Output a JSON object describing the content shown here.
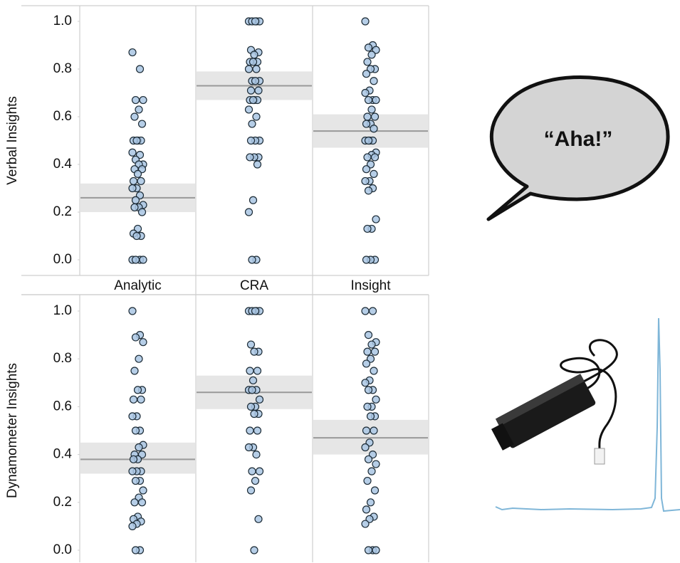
{
  "chart_data": [
    {
      "type": "strip",
      "y_label": "Verbal Insights",
      "categories": [
        "Analytic",
        "CRA",
        "Insight"
      ],
      "ylim": [
        0,
        1
      ],
      "yticks": [
        {
          "value": 0,
          "label": "0.0"
        },
        0.2,
        0.4,
        0.6,
        0.8,
        {
          "value": 1,
          "label": "1.0"
        }
      ],
      "grid": false,
      "point_color": "#a9c6e3",
      "mean_color": "#999999",
      "band_color": "#e6e6e6",
      "points": [
        [
          0.87,
          0.8,
          0.67,
          0.67,
          0.63,
          0.6,
          0.57,
          0.5,
          0.5,
          0.5,
          0.5,
          0.45,
          0.44,
          0.42,
          0.4,
          0.4,
          0.38,
          0.38,
          0.36,
          0.33,
          0.33,
          0.3,
          0.3,
          0.27,
          0.25,
          0.23,
          0.22,
          0.22,
          0.2,
          0.13,
          0.11,
          0.1,
          0.1,
          0,
          0,
          0,
          0
        ],
        [
          1,
          1,
          1,
          1,
          1,
          0.88,
          0.87,
          0.86,
          0.83,
          0.83,
          0.83,
          0.8,
          0.8,
          0.75,
          0.75,
          0.75,
          0.71,
          0.71,
          0.67,
          0.67,
          0.67,
          0.67,
          0.63,
          0.6,
          0.57,
          0.5,
          0.5,
          0.5,
          0.43,
          0.43,
          0.43,
          0.4,
          0.25,
          0.2,
          0,
          0
        ],
        [
          1,
          0.9,
          0.89,
          0.88,
          0.86,
          0.83,
          0.8,
          0.8,
          0.78,
          0.75,
          0.71,
          0.7,
          0.67,
          0.67,
          0.67,
          0.63,
          0.6,
          0.6,
          0.57,
          0.57,
          0.55,
          0.5,
          0.5,
          0.5,
          0.5,
          0.45,
          0.44,
          0.43,
          0.43,
          0.4,
          0.38,
          0.36,
          0.33,
          0.33,
          0.3,
          0.29,
          0.17,
          0.13,
          0.13,
          0,
          0,
          0
        ]
      ],
      "means": [
        0.26,
        0.73,
        0.54
      ],
      "ci": [
        [
          0.2,
          0.32
        ],
        [
          0.67,
          0.79
        ],
        [
          0.47,
          0.61
        ]
      ]
    },
    {
      "type": "strip",
      "y_label": "Dynamometer Insights",
      "ylim": [
        0,
        1
      ],
      "yticks": [
        {
          "value": 0,
          "label": "0.0"
        },
        0.2,
        0.4,
        0.6,
        0.8,
        {
          "value": 1,
          "label": "1.0"
        }
      ],
      "grid": false,
      "point_color": "#a9c6e3",
      "mean_color": "#999999",
      "band_color": "#e6e6e6",
      "points": [
        [
          1,
          0.9,
          0.89,
          0.87,
          0.8,
          0.75,
          0.67,
          0.67,
          0.63,
          0.63,
          0.56,
          0.56,
          0.5,
          0.5,
          0.44,
          0.43,
          0.4,
          0.4,
          0.38,
          0.38,
          0.33,
          0.33,
          0.33,
          0.29,
          0.29,
          0.25,
          0.22,
          0.2,
          0.2,
          0.14,
          0.13,
          0.12,
          0.11,
          0.1,
          0,
          0
        ],
        [
          1,
          1,
          1,
          1,
          1,
          0.86,
          0.83,
          0.83,
          0.75,
          0.75,
          0.71,
          0.67,
          0.67,
          0.67,
          0.63,
          0.6,
          0.6,
          0.57,
          0.57,
          0.5,
          0.5,
          0.43,
          0.43,
          0.4,
          0.33,
          0.33,
          0.29,
          0.25,
          0.13,
          0
        ],
        [
          1,
          1,
          0.9,
          0.87,
          0.86,
          0.83,
          0.83,
          0.8,
          0.78,
          0.75,
          0.71,
          0.7,
          0.67,
          0.67,
          0.63,
          0.6,
          0.6,
          0.56,
          0.56,
          0.5,
          0.5,
          0.45,
          0.43,
          0.4,
          0.38,
          0.36,
          0.33,
          0.29,
          0.25,
          0.2,
          0.17,
          0.14,
          0.13,
          0.11,
          0,
          0,
          0
        ]
      ],
      "means": [
        0.38,
        0.66,
        0.47
      ],
      "ci": [
        [
          0.32,
          0.45
        ],
        [
          0.59,
          0.73
        ],
        [
          0.4,
          0.545
        ]
      ]
    }
  ],
  "bubble": {
    "text": "“Aha!”"
  }
}
